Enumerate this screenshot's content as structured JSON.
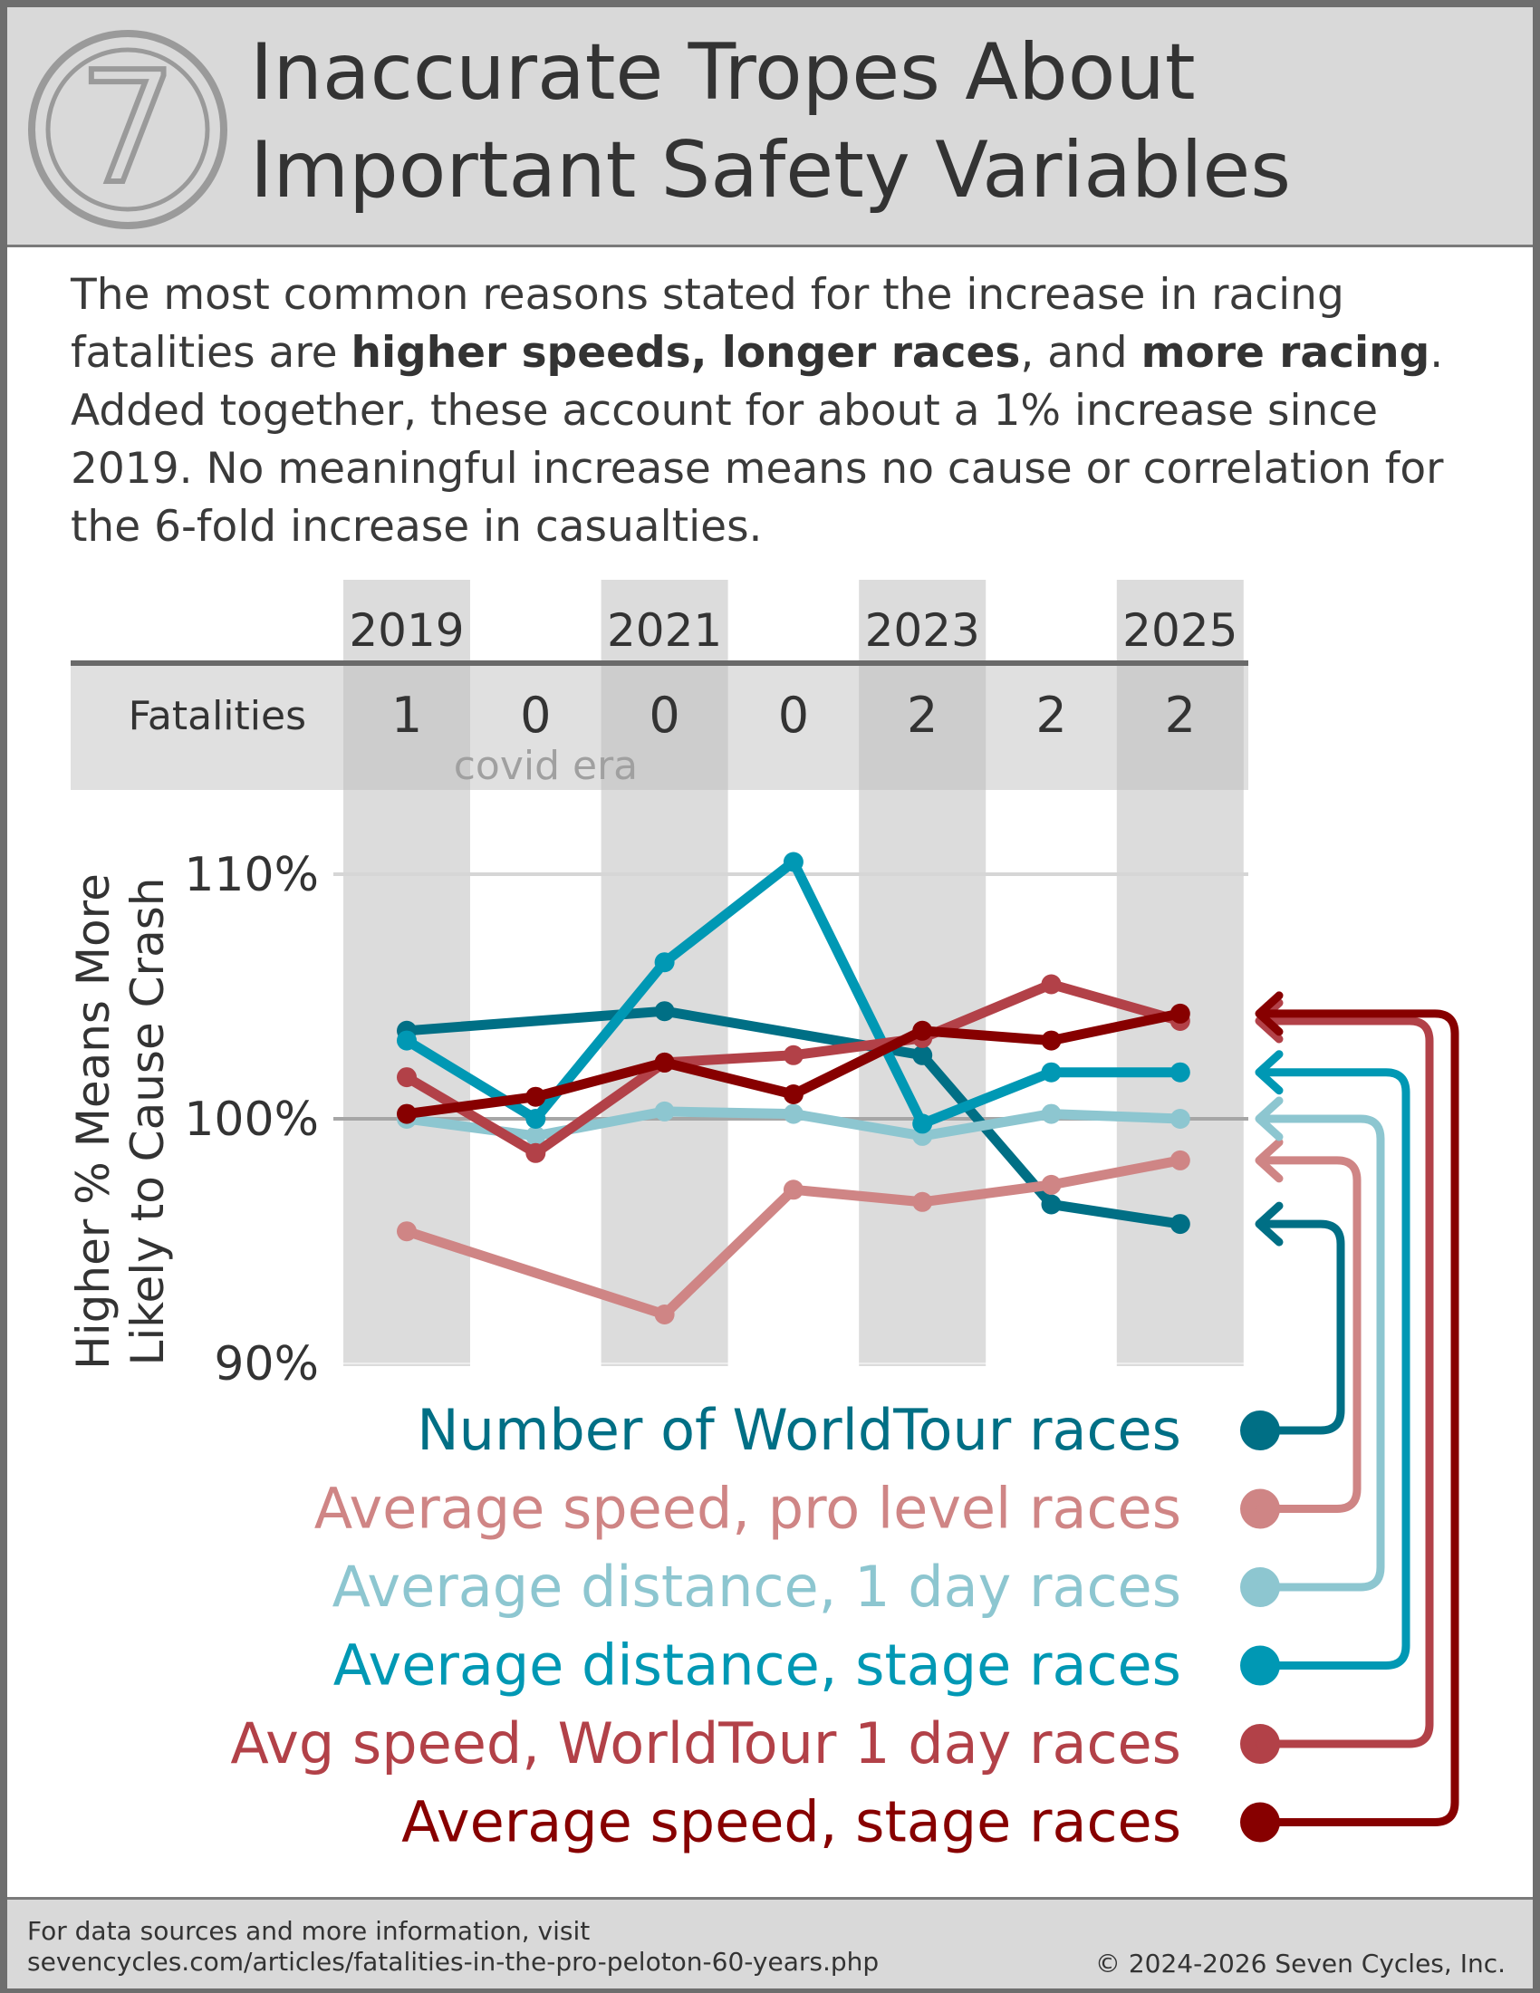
{
  "header": {
    "logo_glyph": "7",
    "title_line1": "Inaccurate Tropes About",
    "title_line2": "Important Safety Variables"
  },
  "intro": {
    "p1": "The most common reasons stated for the increase in racing fatalities are ",
    "b1": "higher speeds, longer races",
    "p2": ", and ",
    "b2": "more racing",
    "p3": ". Added together, these account for about a 1% increase since 2019.  No meaningful increase means no cause or correlation for the 6-fold increase in casualties."
  },
  "chart_data": {
    "type": "line",
    "x": [
      2019,
      2020,
      2021,
      2022,
      2023,
      2024,
      2025
    ],
    "x_tick_labels": [
      "2019",
      "2021",
      "2023",
      "2025"
    ],
    "fatalities_label": "Fatalities",
    "fatalities": [
      1,
      0,
      0,
      0,
      2,
      2,
      2
    ],
    "covid_label": "covid era",
    "ylabel_line1": "Higher % Means More",
    "ylabel_line2": "Likely to Cause Crash",
    "ylim": [
      90,
      110
    ],
    "yticks": [
      90,
      100,
      110
    ],
    "ytick_labels": [
      "90%",
      "100%",
      "110%"
    ],
    "grid": true,
    "legend_position": "bottom, with arrows pointing to line ends",
    "series": [
      {
        "name": "Number of WorldTour races",
        "color": "#006f85",
        "values": [
          103.6,
          null,
          104.4,
          null,
          102.6,
          96.5,
          95.7
        ]
      },
      {
        "name": "Average speed, pro level races",
        "color": "#cf8585",
        "values": [
          95.4,
          null,
          92.0,
          97.1,
          96.6,
          97.3,
          98.3
        ]
      },
      {
        "name": "Average distance, 1 day races",
        "color": "#8dc6d0",
        "values": [
          100.0,
          99.3,
          100.3,
          100.2,
          99.3,
          100.2,
          100.0
        ]
      },
      {
        "name": "Average distance, stage races",
        "color": "#0098b4",
        "values": [
          103.2,
          100.0,
          106.4,
          110.5,
          99.8,
          101.9,
          101.9
        ]
      },
      {
        "name": "Avg speed, WorldTour 1 day races",
        "color": "#b24148",
        "values": [
          101.7,
          98.6,
          102.3,
          102.6,
          103.3,
          105.5,
          104.0
        ]
      },
      {
        "name": "Average speed, stage races",
        "color": "#870000",
        "values": [
          100.2,
          100.9,
          102.3,
          101.0,
          103.6,
          103.2,
          104.3
        ]
      }
    ]
  },
  "footer": {
    "note_line1": "For data sources and more information, visit",
    "note_line2": "sevencycles.com/articles/fatalities-in-the-pro-peloton-60-years.php",
    "copyright": "© 2024-2026 Seven Cycles, Inc."
  }
}
